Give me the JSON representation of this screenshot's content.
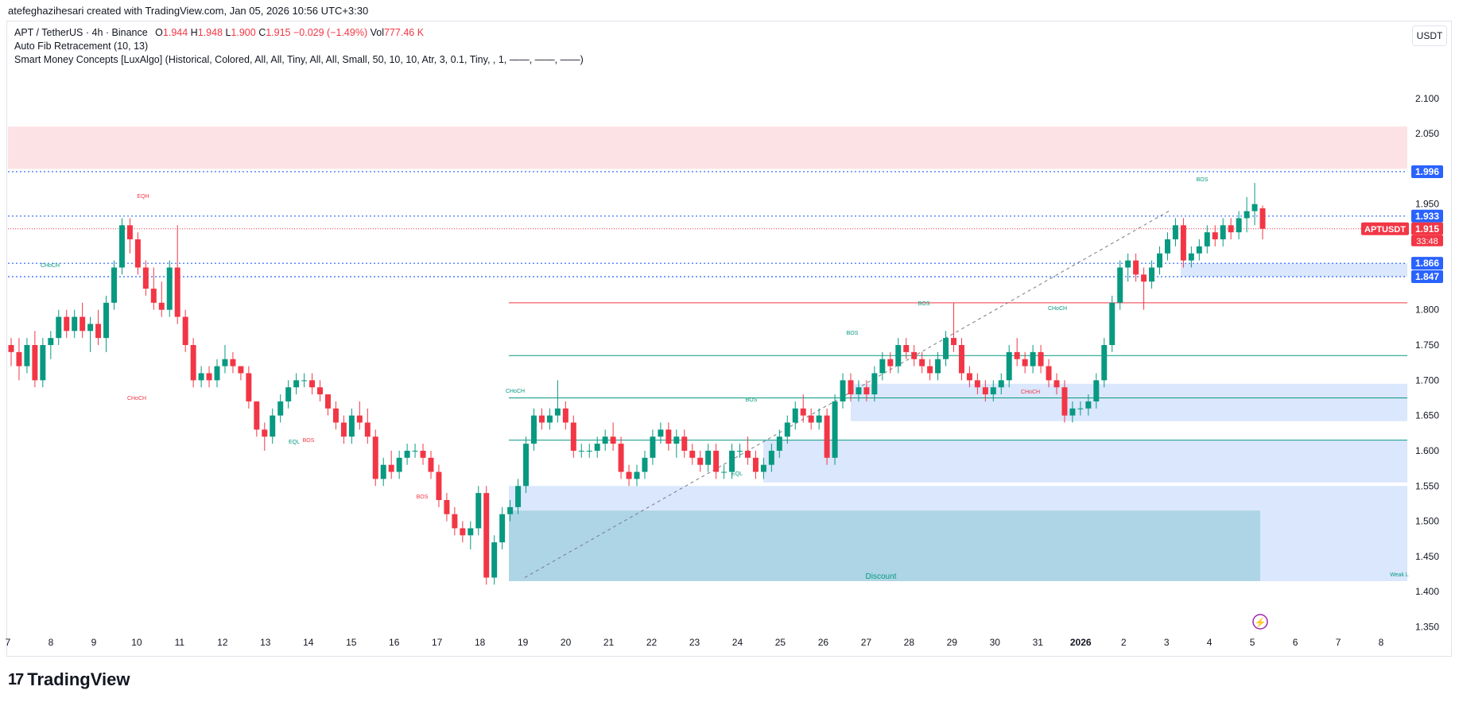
{
  "header": {
    "attribution": "atefeghazihesari created with TradingView.com, Jan 05, 2026 10:56 UTC+3:30"
  },
  "legend": {
    "symbol": "APT / TetherUS · 4h · Binance",
    "o_label": "O",
    "o_value": "1.944",
    "h_label": "H",
    "h_value": "1.948",
    "l_label": "L",
    "l_value": "1.900",
    "c_label": "C",
    "c_value": "1.915",
    "change": "−0.029 (−1.49%)",
    "vol_label": "Vol",
    "vol_value": "777.46 K",
    "indicator_1": "Auto Fib Retracement (10, 13)",
    "indicator_2": "Smart Money Concepts [LuxAlgo] (Historical, Colored, All, All, Tiny, All, All, Small, 50, 10, 10, Atr, 3, 0.1, Tiny, , 1, ——, ——, ——)"
  },
  "currency": "USDT",
  "footer": {
    "brand": "TradingView"
  },
  "colors": {
    "up": "#089981",
    "down": "#f23645",
    "blue_line": "#2962ff",
    "demand_zone": "#d6e4fd",
    "discount_zone": "#a9d3e2",
    "supply_zone": "#fbd5d8"
  },
  "chart_data": {
    "type": "candlestick",
    "symbol": "APTUSDT",
    "interval": "4h",
    "y_ticks": [
      2.1,
      2.05,
      1.95,
      1.8,
      1.75,
      1.7,
      1.65,
      1.6,
      1.55,
      1.5,
      1.45,
      1.4,
      1.35
    ],
    "ylim": [
      1.31,
      2.19
    ],
    "x_ticks": [
      "7",
      "8",
      "9",
      "10",
      "11",
      "12",
      "13",
      "14",
      "15",
      "16",
      "17",
      "18",
      "19",
      "20",
      "21",
      "22",
      "23",
      "24",
      "25",
      "26",
      "27",
      "28",
      "29",
      "30",
      "31",
      "2026",
      "2",
      "3",
      "4",
      "5",
      "6",
      "7",
      "8"
    ],
    "price_labels": [
      {
        "value": "1.996",
        "price": 1.996,
        "kind": "blue"
      },
      {
        "value": "1.933",
        "price": 1.933,
        "kind": "blue"
      },
      {
        "value": "1.915",
        "price": 1.915,
        "kind": "current"
      },
      {
        "value": "1.866",
        "price": 1.866,
        "kind": "blue"
      },
      {
        "value": "1.847",
        "price": 1.847,
        "kind": "blue"
      }
    ],
    "current_price_tag": "APTUSDT",
    "countdown": "33:48",
    "annotations": [
      "EQH",
      "CHoCH",
      "CHoCH",
      "EQL",
      "BOS",
      "BOS",
      "CHoCH",
      "BOS",
      "EQL",
      "BOS",
      "BOS",
      "CHoCH",
      "CHoCH",
      "BOS",
      "Discount",
      "Weak L"
    ],
    "candles_approx": [
      [
        1.75,
        1.76,
        1.72,
        1.74
      ],
      [
        1.74,
        1.76,
        1.7,
        1.72
      ],
      [
        1.72,
        1.76,
        1.71,
        1.75
      ],
      [
        1.75,
        1.77,
        1.69,
        1.7
      ],
      [
        1.7,
        1.76,
        1.69,
        1.75
      ],
      [
        1.75,
        1.77,
        1.73,
        1.76
      ],
      [
        1.76,
        1.8,
        1.75,
        1.79
      ],
      [
        1.79,
        1.8,
        1.76,
        1.77
      ],
      [
        1.77,
        1.8,
        1.76,
        1.79
      ],
      [
        1.79,
        1.81,
        1.76,
        1.77
      ],
      [
        1.77,
        1.79,
        1.74,
        1.78
      ],
      [
        1.78,
        1.8,
        1.75,
        1.76
      ],
      [
        1.76,
        1.82,
        1.74,
        1.81
      ],
      [
        1.81,
        1.87,
        1.8,
        1.86
      ],
      [
        1.86,
        1.93,
        1.85,
        1.92
      ],
      [
        1.92,
        1.93,
        1.88,
        1.9
      ],
      [
        1.9,
        1.91,
        1.85,
        1.86
      ],
      [
        1.86,
        1.87,
        1.82,
        1.83
      ],
      [
        1.83,
        1.86,
        1.8,
        1.81
      ],
      [
        1.81,
        1.84,
        1.79,
        1.8
      ],
      [
        1.8,
        1.87,
        1.79,
        1.86
      ],
      [
        1.86,
        1.92,
        1.78,
        1.79
      ],
      [
        1.79,
        1.8,
        1.74,
        1.75
      ],
      [
        1.75,
        1.76,
        1.69,
        1.7
      ],
      [
        1.7,
        1.72,
        1.69,
        1.71
      ],
      [
        1.71,
        1.72,
        1.69,
        1.7
      ],
      [
        1.7,
        1.73,
        1.69,
        1.72
      ],
      [
        1.72,
        1.75,
        1.71,
        1.73
      ],
      [
        1.73,
        1.74,
        1.71,
        1.72
      ],
      [
        1.72,
        1.72,
        1.7,
        1.71
      ],
      [
        1.71,
        1.72,
        1.66,
        1.67
      ],
      [
        1.67,
        1.67,
        1.62,
        1.63
      ],
      [
        1.63,
        1.64,
        1.6,
        1.62
      ],
      [
        1.62,
        1.66,
        1.61,
        1.65
      ],
      [
        1.65,
        1.68,
        1.64,
        1.67
      ],
      [
        1.67,
        1.7,
        1.66,
        1.69
      ],
      [
        1.69,
        1.71,
        1.68,
        1.7
      ],
      [
        1.7,
        1.71,
        1.69,
        1.7
      ],
      [
        1.7,
        1.71,
        1.68,
        1.69
      ],
      [
        1.69,
        1.7,
        1.67,
        1.68
      ],
      [
        1.68,
        1.68,
        1.65,
        1.66
      ],
      [
        1.66,
        1.67,
        1.63,
        1.64
      ],
      [
        1.64,
        1.65,
        1.61,
        1.62
      ],
      [
        1.62,
        1.66,
        1.61,
        1.65
      ],
      [
        1.65,
        1.67,
        1.63,
        1.64
      ],
      [
        1.64,
        1.66,
        1.61,
        1.62
      ],
      [
        1.62,
        1.63,
        1.55,
        1.56
      ],
      [
        1.56,
        1.59,
        1.55,
        1.58
      ],
      [
        1.58,
        1.6,
        1.56,
        1.57
      ],
      [
        1.57,
        1.6,
        1.56,
        1.59
      ],
      [
        1.59,
        1.61,
        1.58,
        1.6
      ],
      [
        1.6,
        1.61,
        1.59,
        1.6
      ],
      [
        1.6,
        1.61,
        1.58,
        1.59
      ],
      [
        1.59,
        1.6,
        1.56,
        1.57
      ],
      [
        1.57,
        1.58,
        1.52,
        1.53
      ],
      [
        1.53,
        1.54,
        1.5,
        1.51
      ],
      [
        1.51,
        1.52,
        1.48,
        1.49
      ],
      [
        1.49,
        1.5,
        1.47,
        1.48
      ],
      [
        1.48,
        1.5,
        1.46,
        1.49
      ],
      [
        1.49,
        1.55,
        1.48,
        1.54
      ],
      [
        1.54,
        1.55,
        1.41,
        1.42
      ],
      [
        1.42,
        1.48,
        1.41,
        1.47
      ],
      [
        1.47,
        1.52,
        1.46,
        1.51
      ],
      [
        1.51,
        1.53,
        1.5,
        1.52
      ],
      [
        1.52,
        1.56,
        1.51,
        1.55
      ],
      [
        1.55,
        1.62,
        1.54,
        1.61
      ],
      [
        1.61,
        1.66,
        1.6,
        1.65
      ],
      [
        1.65,
        1.66,
        1.63,
        1.64
      ],
      [
        1.64,
        1.66,
        1.63,
        1.65
      ],
      [
        1.65,
        1.7,
        1.64,
        1.66
      ],
      [
        1.66,
        1.67,
        1.63,
        1.64
      ],
      [
        1.64,
        1.65,
        1.59,
        1.6
      ],
      [
        1.6,
        1.61,
        1.59,
        1.6
      ],
      [
        1.6,
        1.61,
        1.59,
        1.6
      ],
      [
        1.6,
        1.62,
        1.59,
        1.61
      ],
      [
        1.61,
        1.63,
        1.6,
        1.62
      ],
      [
        1.62,
        1.64,
        1.6,
        1.61
      ],
      [
        1.61,
        1.62,
        1.56,
        1.57
      ],
      [
        1.57,
        1.58,
        1.55,
        1.56
      ],
      [
        1.56,
        1.58,
        1.55,
        1.57
      ],
      [
        1.57,
        1.6,
        1.56,
        1.59
      ],
      [
        1.59,
        1.63,
        1.58,
        1.62
      ],
      [
        1.62,
        1.64,
        1.61,
        1.63
      ],
      [
        1.63,
        1.64,
        1.6,
        1.61
      ],
      [
        1.61,
        1.63,
        1.59,
        1.62
      ],
      [
        1.62,
        1.63,
        1.59,
        1.6
      ],
      [
        1.6,
        1.61,
        1.58,
        1.59
      ],
      [
        1.59,
        1.6,
        1.57,
        1.58
      ],
      [
        1.58,
        1.61,
        1.57,
        1.6
      ],
      [
        1.6,
        1.61,
        1.56,
        1.57
      ],
      [
        1.57,
        1.58,
        1.56,
        1.57
      ],
      [
        1.57,
        1.61,
        1.56,
        1.6
      ],
      [
        1.6,
        1.61,
        1.59,
        1.6
      ],
      [
        1.6,
        1.62,
        1.58,
        1.59
      ],
      [
        1.59,
        1.6,
        1.56,
        1.57
      ],
      [
        1.57,
        1.59,
        1.56,
        1.58
      ],
      [
        1.58,
        1.61,
        1.57,
        1.6
      ],
      [
        1.6,
        1.63,
        1.59,
        1.62
      ],
      [
        1.62,
        1.65,
        1.61,
        1.64
      ],
      [
        1.64,
        1.67,
        1.63,
        1.66
      ],
      [
        1.66,
        1.68,
        1.64,
        1.65
      ],
      [
        1.65,
        1.66,
        1.63,
        1.64
      ],
      [
        1.64,
        1.66,
        1.63,
        1.65
      ],
      [
        1.65,
        1.66,
        1.58,
        1.59
      ],
      [
        1.59,
        1.68,
        1.58,
        1.67
      ],
      [
        1.67,
        1.71,
        1.66,
        1.7
      ],
      [
        1.7,
        1.71,
        1.67,
        1.68
      ],
      [
        1.68,
        1.7,
        1.67,
        1.69
      ],
      [
        1.69,
        1.7,
        1.67,
        1.68
      ],
      [
        1.68,
        1.72,
        1.67,
        1.71
      ],
      [
        1.71,
        1.74,
        1.7,
        1.73
      ],
      [
        1.73,
        1.74,
        1.71,
        1.72
      ],
      [
        1.72,
        1.76,
        1.71,
        1.75
      ],
      [
        1.75,
        1.76,
        1.73,
        1.74
      ],
      [
        1.74,
        1.75,
        1.72,
        1.73
      ],
      [
        1.73,
        1.74,
        1.71,
        1.72
      ],
      [
        1.72,
        1.73,
        1.7,
        1.71
      ],
      [
        1.71,
        1.74,
        1.7,
        1.73
      ],
      [
        1.73,
        1.77,
        1.72,
        1.76
      ],
      [
        1.76,
        1.81,
        1.74,
        1.75
      ],
      [
        1.75,
        1.76,
        1.7,
        1.71
      ],
      [
        1.71,
        1.72,
        1.69,
        1.7
      ],
      [
        1.7,
        1.71,
        1.68,
        1.69
      ],
      [
        1.69,
        1.7,
        1.67,
        1.68
      ],
      [
        1.68,
        1.7,
        1.67,
        1.69
      ],
      [
        1.69,
        1.71,
        1.68,
        1.7
      ],
      [
        1.7,
        1.75,
        1.69,
        1.74
      ],
      [
        1.74,
        1.76,
        1.72,
        1.73
      ],
      [
        1.73,
        1.74,
        1.71,
        1.72
      ],
      [
        1.72,
        1.75,
        1.71,
        1.74
      ],
      [
        1.74,
        1.75,
        1.71,
        1.72
      ],
      [
        1.72,
        1.73,
        1.69,
        1.7
      ],
      [
        1.7,
        1.71,
        1.68,
        1.69
      ],
      [
        1.69,
        1.7,
        1.64,
        1.65
      ],
      [
        1.65,
        1.67,
        1.64,
        1.66
      ],
      [
        1.66,
        1.67,
        1.65,
        1.66
      ],
      [
        1.66,
        1.68,
        1.65,
        1.67
      ],
      [
        1.67,
        1.71,
        1.66,
        1.7
      ],
      [
        1.7,
        1.76,
        1.69,
        1.75
      ],
      [
        1.75,
        1.82,
        1.74,
        1.81
      ],
      [
        1.81,
        1.87,
        1.8,
        1.86
      ],
      [
        1.86,
        1.88,
        1.84,
        1.87
      ],
      [
        1.87,
        1.88,
        1.84,
        1.85
      ],
      [
        1.85,
        1.86,
        1.8,
        1.84
      ],
      [
        1.84,
        1.87,
        1.83,
        1.86
      ],
      [
        1.86,
        1.89,
        1.85,
        1.88
      ],
      [
        1.88,
        1.91,
        1.87,
        1.9
      ],
      [
        1.9,
        1.93,
        1.89,
        1.92
      ],
      [
        1.92,
        1.93,
        1.86,
        1.87
      ],
      [
        1.87,
        1.89,
        1.86,
        1.88
      ],
      [
        1.88,
        1.9,
        1.87,
        1.89
      ],
      [
        1.89,
        1.92,
        1.88,
        1.91
      ],
      [
        1.91,
        1.92,
        1.89,
        1.9
      ],
      [
        1.9,
        1.93,
        1.89,
        1.92
      ],
      [
        1.92,
        1.93,
        1.9,
        1.91
      ],
      [
        1.91,
        1.94,
        1.9,
        1.93
      ],
      [
        1.93,
        1.96,
        1.91,
        1.94
      ],
      [
        1.94,
        1.98,
        1.92,
        1.95
      ],
      [
        1.944,
        1.948,
        1.9,
        1.915
      ]
    ]
  }
}
